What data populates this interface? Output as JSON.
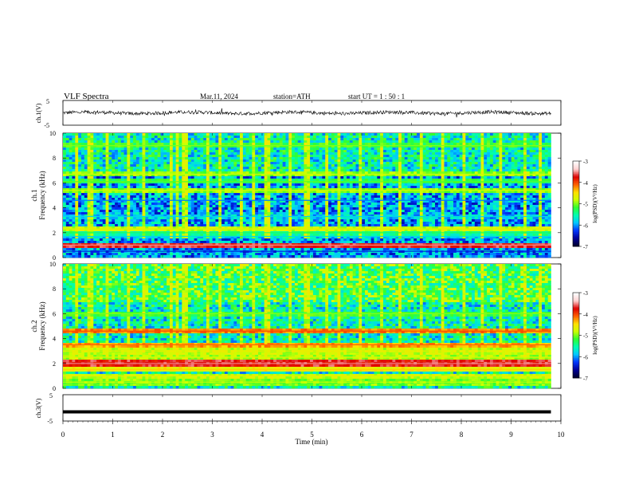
{
  "header": {
    "title": "VLF  Spectra",
    "date": "Mar.11, 2024",
    "station": "station=ATH",
    "start": "start  UT  =   1 : 50 : 1"
  },
  "colorbar": {
    "label": "log(PSD)(V²/Hz)",
    "ticks": [
      "-3",
      "-4",
      "-5",
      "-6",
      "-7"
    ],
    "colors": [
      "#000033",
      "#00009a",
      "#0038ff",
      "#00c8ff",
      "#00ffb0",
      "#30ff30",
      "#ccff00",
      "#ffe000",
      "#ff6000",
      "#dd0000",
      "#ffd0d0",
      "#ffffff"
    ]
  },
  "chart_data": [
    {
      "type": "line",
      "panel": "ch1",
      "ylabel": "ch.1(V)",
      "yticks": [
        "5",
        "-5"
      ],
      "ylim": [
        -5,
        5
      ],
      "xlim": [
        0,
        10
      ],
      "trace_range": [
        0,
        9.8
      ],
      "baseline_value": 0,
      "color": "#000000"
    },
    {
      "type": "heatmap",
      "panel": "ch1-spectrogram",
      "ylabel_line1": "ch.1",
      "ylabel_line2": "Frequency (kHz)",
      "yticks": [
        "10",
        "8",
        "6",
        "4",
        "2",
        "0"
      ],
      "ylim": [
        0,
        10
      ],
      "xlim": [
        0,
        10
      ],
      "data_range": [
        0,
        9.8
      ],
      "colorscale": "log(PSD)(V²/Hz)",
      "zlim": [
        -7,
        -3
      ],
      "bands_khz": [
        {
          "f": 9.0,
          "level": -5.2
        },
        {
          "f": 6.7,
          "level": -5.0
        },
        {
          "f": 6.1,
          "level": -5.3
        },
        {
          "f": 5.4,
          "level": -5.0
        },
        {
          "f": 4.6,
          "level": -6.3
        },
        {
          "f": 3.3,
          "level": -6.0
        },
        {
          "f": 2.3,
          "level": -4.8
        },
        {
          "f": 2.0,
          "level": -5.5
        },
        {
          "f": 1.7,
          "level": -6.0
        },
        {
          "f": 1.0,
          "level": -3.7
        },
        {
          "f": 0.5,
          "level": -6.6
        }
      ],
      "sferic_times_min": [
        0.3,
        0.55,
        0.9,
        1.3,
        1.6,
        2.15,
        2.3,
        2.45,
        2.9,
        3.15,
        3.6,
        3.85,
        4.1,
        4.55,
        4.9,
        5.3,
        5.55,
        5.95,
        6.4,
        6.75,
        7.2,
        7.6,
        8.05,
        8.4,
        8.8,
        9.3,
        9.6
      ]
    },
    {
      "type": "heatmap",
      "panel": "ch2-spectrogram",
      "ylabel_line1": "ch.2",
      "ylabel_line2": "Frequency (kHz)",
      "yticks": [
        "10",
        "8",
        "6",
        "4",
        "2",
        "0"
      ],
      "ylim": [
        0,
        10
      ],
      "xlim": [
        0,
        10
      ],
      "data_range": [
        0,
        9.8
      ],
      "colorscale": "log(PSD)(V²/Hz)",
      "zlim": [
        -7,
        -3
      ],
      "bands_khz": [
        {
          "f": 6.0,
          "level": -5.2
        },
        {
          "f": 4.6,
          "level": -4.2
        },
        {
          "f": 3.5,
          "level": -4.3
        },
        {
          "f": 3.0,
          "level": -4.8
        },
        {
          "f": 2.5,
          "level": -4.9
        },
        {
          "f": 2.0,
          "level": -3.7
        },
        {
          "f": 1.5,
          "level": -4.6
        },
        {
          "f": 1.0,
          "level": -4.8
        },
        {
          "f": 0.5,
          "level": -5.0
        }
      ],
      "sferic_times_min": [
        0.3,
        0.55,
        0.9,
        1.3,
        1.6,
        2.15,
        2.3,
        2.45,
        2.9,
        3.15,
        3.6,
        3.85,
        4.1,
        4.55,
        4.9,
        5.3,
        5.55,
        5.95,
        6.4,
        6.75,
        7.2,
        7.6,
        8.05,
        8.4,
        8.8,
        9.3,
        9.6
      ]
    },
    {
      "type": "line",
      "panel": "ch3",
      "ylabel": "ch.3(V)",
      "yticks": [
        "5",
        "-5"
      ],
      "ylim": [
        -5,
        5
      ],
      "xlim": [
        0,
        10
      ],
      "trace_range": [
        0,
        9.8
      ],
      "baseline_value": -1.5,
      "color": "#000000"
    }
  ],
  "xaxis": {
    "label": "Time  (min)",
    "ticks": [
      "0",
      "1",
      "2",
      "3",
      "4",
      "5",
      "6",
      "7",
      "8",
      "9",
      "10"
    ],
    "xlim": [
      0,
      10
    ]
  }
}
